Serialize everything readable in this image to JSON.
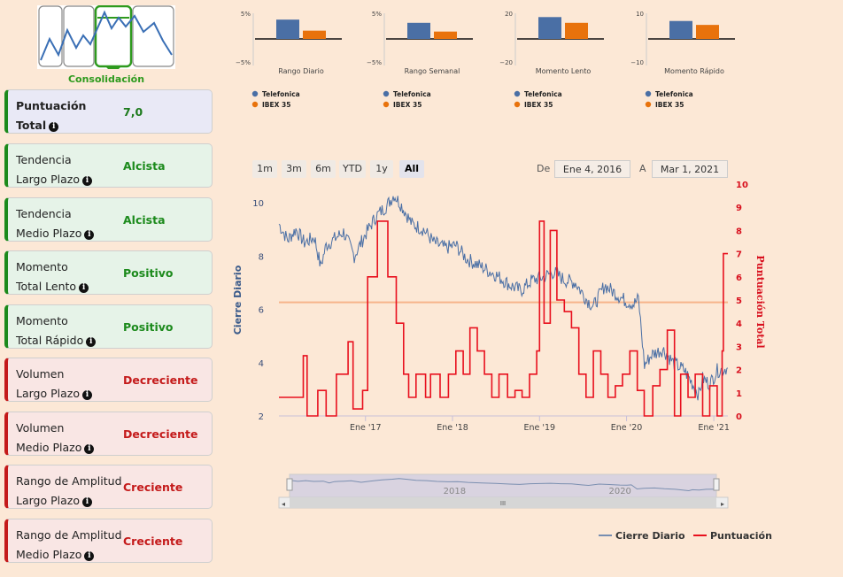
{
  "logo": {
    "caption": "Consolidación"
  },
  "cards": [
    {
      "label1": "Puntuación",
      "label2": "Total",
      "value": "7,0",
      "kind": "total"
    },
    {
      "label1": "Tendencia",
      "label2": "Largo Plazo",
      "value": "Alcista",
      "kind": "pos"
    },
    {
      "label1": "Tendencia",
      "label2": "Medio Plazo",
      "value": "Alcista",
      "kind": "pos"
    },
    {
      "label1": "Momento",
      "label2": "Total Lento",
      "value": "Positivo",
      "kind": "pos"
    },
    {
      "label1": "Momento",
      "label2": "Total Rápido",
      "value": "Positivo",
      "kind": "pos"
    },
    {
      "label1": "Volumen",
      "label2": "Largo Plazo",
      "value": "Decreciente",
      "kind": "neg"
    },
    {
      "label1": "Volumen",
      "label2": "Medio Plazo",
      "value": "Decreciente",
      "kind": "neg"
    },
    {
      "label1": "Rango de Amplitud",
      "label2": "Largo Plazo",
      "value": "Creciente",
      "kind": "neg"
    },
    {
      "label1": "Rango de Amplitud",
      "label2": "Medio Plazo",
      "value": "Creciente",
      "kind": "neg"
    }
  ],
  "range_buttons": [
    "1m",
    "3m",
    "6m",
    "YTD",
    "1y",
    "All"
  ],
  "active_range": "All",
  "date_range": {
    "from_label": "De",
    "from": "Ene 4, 2016",
    "to_label": "A",
    "to": "Mar 1, 2021"
  },
  "navigator": {
    "labels": [
      "2018",
      "2020"
    ],
    "scroll_grip": "III"
  },
  "colors": {
    "telefonica": "#4a6fa5",
    "ibex": "#e8720c",
    "score": "#e8101e",
    "threshold": "#f6b48a"
  },
  "chart_data": [
    {
      "type": "bar",
      "title": "Rango Diario",
      "categories": [
        "Telefonica",
        "IBEX 35"
      ],
      "values": [
        4.2,
        1.8
      ],
      "ylim": [
        -5,
        5
      ],
      "yticks": [
        "5%",
        "−5%"
      ]
    },
    {
      "type": "bar",
      "title": "Rango Semanal",
      "categories": [
        "Telefonica",
        "IBEX 35"
      ],
      "values": [
        3.5,
        1.6
      ],
      "ylim": [
        -5,
        5
      ],
      "yticks": [
        "5%",
        "−5%"
      ]
    },
    {
      "type": "bar",
      "title": "Momento Lento",
      "categories": [
        "Telefonica",
        "IBEX 35"
      ],
      "values": [
        19,
        14
      ],
      "ylim": [
        -20,
        20
      ],
      "yticks": [
        "20",
        "−20"
      ]
    },
    {
      "type": "bar",
      "title": "Momento Rápido",
      "categories": [
        "Telefonica",
        "IBEX 35"
      ],
      "values": [
        7.8,
        6.1
      ],
      "ylim": [
        -10,
        10
      ],
      "yticks": [
        "10",
        "−10"
      ]
    },
    {
      "type": "line",
      "title": "",
      "xlabel": "",
      "ylabel": "Cierre Diario",
      "y2label": "Puntuación Total",
      "xlim": [
        "2016-01-04",
        "2021-03-01"
      ],
      "ylim": [
        2,
        10.7
      ],
      "y2lim": [
        0,
        10
      ],
      "xticks": [
        {
          "date": "2017-01-01",
          "label": "Ene '17"
        },
        {
          "date": "2018-01-01",
          "label": "Ene '18"
        },
        {
          "date": "2019-01-01",
          "label": "Ene '19"
        },
        {
          "date": "2020-01-01",
          "label": "Ene '20"
        },
        {
          "date": "2021-01-01",
          "label": "Ene '21"
        }
      ],
      "yticks": [
        2,
        4,
        6,
        8,
        10
      ],
      "y2ticks": [
        0,
        1,
        2,
        3,
        4,
        5,
        6,
        7,
        8,
        9,
        10
      ],
      "threshold": 4.9,
      "legend": [
        "Cierre Diario",
        "Puntuación"
      ],
      "legend_position": "bottom-right",
      "series": [
        {
          "name": "Cierre Diario",
          "axis": "left",
          "points": [
            [
              "2016-01-04",
              9.2
            ],
            [
              "2016-02-10",
              8.6
            ],
            [
              "2016-03-15",
              9.0
            ],
            [
              "2016-04-20",
              8.5
            ],
            [
              "2016-06-01",
              8.7
            ],
            [
              "2016-06-27",
              7.6
            ],
            [
              "2016-07-20",
              8.4
            ],
            [
              "2016-09-01",
              8.7
            ],
            [
              "2016-10-01",
              8.9
            ],
            [
              "2016-11-15",
              8.0
            ],
            [
              "2016-12-31",
              8.8
            ],
            [
              "2017-02-15",
              9.5
            ],
            [
              "2017-04-01",
              9.9
            ],
            [
              "2017-05-01",
              10.3
            ],
            [
              "2017-06-01",
              9.9
            ],
            [
              "2017-07-15",
              9.2
            ],
            [
              "2017-09-01",
              9.0
            ],
            [
              "2017-10-15",
              8.5
            ],
            [
              "2017-12-01",
              8.3
            ],
            [
              "2018-01-15",
              8.4
            ],
            [
              "2018-03-01",
              7.9
            ],
            [
              "2018-05-01",
              7.6
            ],
            [
              "2018-07-01",
              7.3
            ],
            [
              "2018-09-01",
              6.9
            ],
            [
              "2018-10-15",
              6.7
            ],
            [
              "2018-12-01",
              7.1
            ],
            [
              "2019-01-15",
              7.2
            ],
            [
              "2019-03-01",
              7.4
            ],
            [
              "2019-04-15",
              7.1
            ],
            [
              "2019-06-01",
              7.0
            ],
            [
              "2019-07-15",
              6.4
            ],
            [
              "2019-08-15",
              6.1
            ],
            [
              "2019-10-01",
              6.9
            ],
            [
              "2019-11-15",
              6.6
            ],
            [
              "2019-12-31",
              6.3
            ],
            [
              "2020-02-01",
              6.2
            ],
            [
              "2020-02-20",
              6.4
            ],
            [
              "2020-03-16",
              3.9
            ],
            [
              "2020-04-15",
              4.3
            ],
            [
              "2020-06-01",
              4.5
            ],
            [
              "2020-07-15",
              4.0
            ],
            [
              "2020-09-01",
              3.7
            ],
            [
              "2020-10-30",
              2.8
            ],
            [
              "2020-11-15",
              3.4
            ],
            [
              "2020-12-15",
              3.2
            ],
            [
              "2021-01-15",
              3.7
            ],
            [
              "2021-03-01",
              3.8
            ]
          ]
        },
        {
          "name": "Puntuación",
          "axis": "right",
          "step": true,
          "points": [
            [
              "2016-01-04",
              0.8
            ],
            [
              "2016-04-15",
              2.6
            ],
            [
              "2016-05-01",
              0.0
            ],
            [
              "2016-06-15",
              1.1
            ],
            [
              "2016-07-20",
              0.0
            ],
            [
              "2016-09-01",
              1.8
            ],
            [
              "2016-10-20",
              3.2
            ],
            [
              "2016-11-10",
              0.3
            ],
            [
              "2016-12-20",
              1.1
            ],
            [
              "2017-01-10",
              6.0
            ],
            [
              "2017-02-20",
              8.4
            ],
            [
              "2017-04-05",
              6.0
            ],
            [
              "2017-05-10",
              4.0
            ],
            [
              "2017-06-10",
              1.8
            ],
            [
              "2017-07-01",
              0.8
            ],
            [
              "2017-08-01",
              1.8
            ],
            [
              "2017-09-10",
              0.8
            ],
            [
              "2017-10-01",
              1.8
            ],
            [
              "2017-11-10",
              0.8
            ],
            [
              "2017-12-15",
              1.8
            ],
            [
              "2018-01-15",
              2.8
            ],
            [
              "2018-02-15",
              1.8
            ],
            [
              "2018-03-15",
              3.8
            ],
            [
              "2018-04-15",
              2.8
            ],
            [
              "2018-05-15",
              1.8
            ],
            [
              "2018-06-15",
              0.8
            ],
            [
              "2018-07-15",
              1.8
            ],
            [
              "2018-08-20",
              0.8
            ],
            [
              "2018-09-20",
              1.1
            ],
            [
              "2018-10-20",
              0.8
            ],
            [
              "2018-11-20",
              1.8
            ],
            [
              "2018-12-20",
              2.8
            ],
            [
              "2019-01-01",
              8.4
            ],
            [
              "2019-01-20",
              4.0
            ],
            [
              "2019-02-15",
              8.0
            ],
            [
              "2019-03-15",
              5.0
            ],
            [
              "2019-04-15",
              4.5
            ],
            [
              "2019-05-15",
              3.8
            ],
            [
              "2019-06-15",
              1.8
            ],
            [
              "2019-07-15",
              0.8
            ],
            [
              "2019-08-15",
              2.8
            ],
            [
              "2019-09-15",
              1.8
            ],
            [
              "2019-10-15",
              0.8
            ],
            [
              "2019-11-15",
              1.3
            ],
            [
              "2019-12-15",
              1.8
            ],
            [
              "2020-01-15",
              2.8
            ],
            [
              "2020-02-15",
              1.1
            ],
            [
              "2020-03-15",
              0.0
            ],
            [
              "2020-04-20",
              1.3
            ],
            [
              "2020-05-20",
              2.0
            ],
            [
              "2020-06-20",
              3.7
            ],
            [
              "2020-07-20",
              0.0
            ],
            [
              "2020-08-15",
              1.8
            ],
            [
              "2020-09-15",
              0.8
            ],
            [
              "2020-10-15",
              1.8
            ],
            [
              "2020-11-15",
              0.0
            ],
            [
              "2020-12-15",
              1.3
            ],
            [
              "2021-01-15",
              0.0
            ],
            [
              "2021-02-05",
              2.8
            ],
            [
              "2021-02-10",
              7.0
            ],
            [
              "2021-03-01",
              7.0
            ]
          ]
        }
      ]
    }
  ]
}
